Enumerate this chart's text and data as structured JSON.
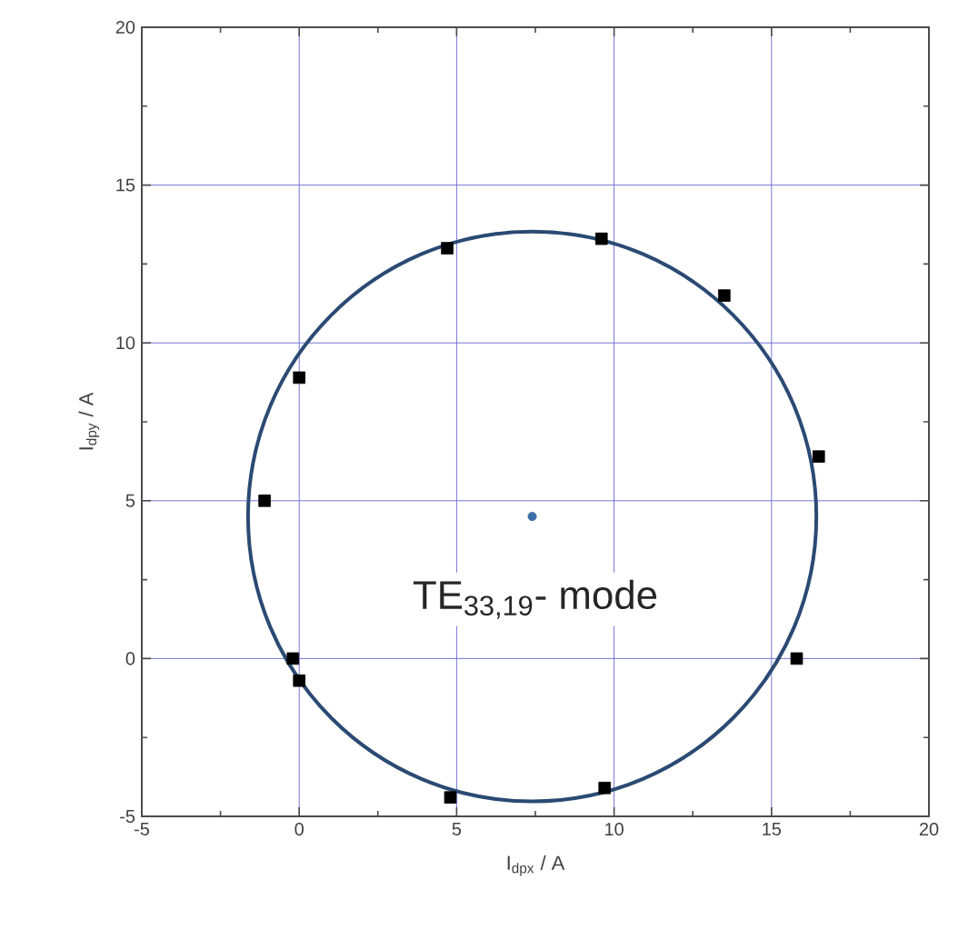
{
  "chart_data": {
    "type": "scatter",
    "xlabel": "I$_{dpx}$ / A",
    "ylabel": "I$_{dpy}$ / A",
    "xlim": [
      -5,
      20
    ],
    "ylim": [
      -5,
      20
    ],
    "xticks": [
      -5,
      0,
      5,
      10,
      15,
      20
    ],
    "yticks": [
      -5,
      0,
      5,
      10,
      15,
      20
    ],
    "grid": true,
    "tick_labels": [
      "x",
      "y"
    ],
    "series": [
      {
        "color": "#000000",
        "marker": "square",
        "x": [
          0.0,
          4.7,
          9.6,
          13.5,
          16.5,
          -1.1,
          -0.2,
          0.0,
          4.8,
          9.7,
          15.8
        ],
        "values": [
          8.9,
          13.0,
          13.3,
          11.5,
          6.4,
          5.0,
          0.0,
          -0.7,
          -4.4,
          -4.1,
          0.0
        ]
      },
      {
        "color": "#3a6ea8",
        "marker": "circle",
        "x": [
          7.4
        ],
        "values": [
          4.5
        ]
      }
    ],
    "annotations": [
      "TE$_{33,19}$- mode"
    ]
  }
}
